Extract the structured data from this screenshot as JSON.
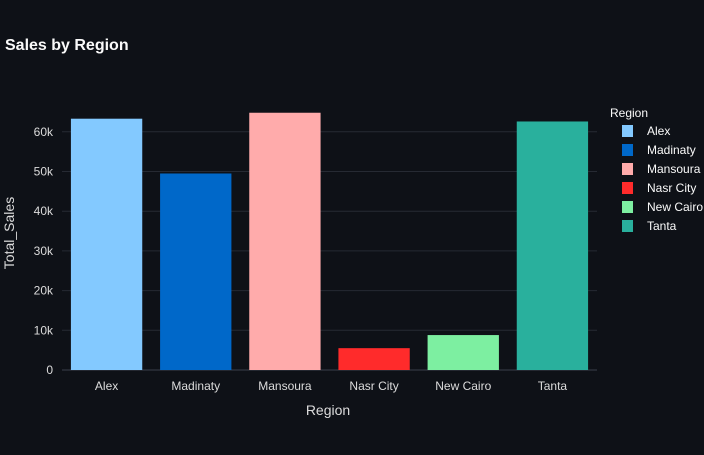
{
  "chart_data": {
    "type": "bar",
    "title": "Sales by Region",
    "xlabel": "Region",
    "ylabel": "Total_Sales",
    "categories": [
      "Alex",
      "Madinaty",
      "Mansoura",
      "Nasr City",
      "New Cairo",
      "Tanta"
    ],
    "values": [
      63300,
      49500,
      64800,
      5500,
      8800,
      62600
    ],
    "colors": [
      "#83c9ff",
      "#0068c9",
      "#ffabab",
      "#ff2b2b",
      "#7defa1",
      "#29b09d"
    ],
    "ylim": [
      0,
      70000
    ],
    "yticks": [
      0,
      10000,
      20000,
      30000,
      40000,
      50000,
      60000
    ],
    "ytick_labels": [
      "0",
      "10k",
      "20k",
      "30k",
      "40k",
      "50k",
      "60k"
    ],
    "grid": true,
    "legend": {
      "title": "Region",
      "position": "top-right",
      "entries": [
        "Alex",
        "Madinaty",
        "Mansoura",
        "Nasr City",
        "New Cairo",
        "Tanta"
      ]
    }
  },
  "theme": {
    "background": "#0e1117",
    "grid_color": "#262a33",
    "text_color": "#fafafa",
    "tick_color": "#dcdcdc"
  }
}
